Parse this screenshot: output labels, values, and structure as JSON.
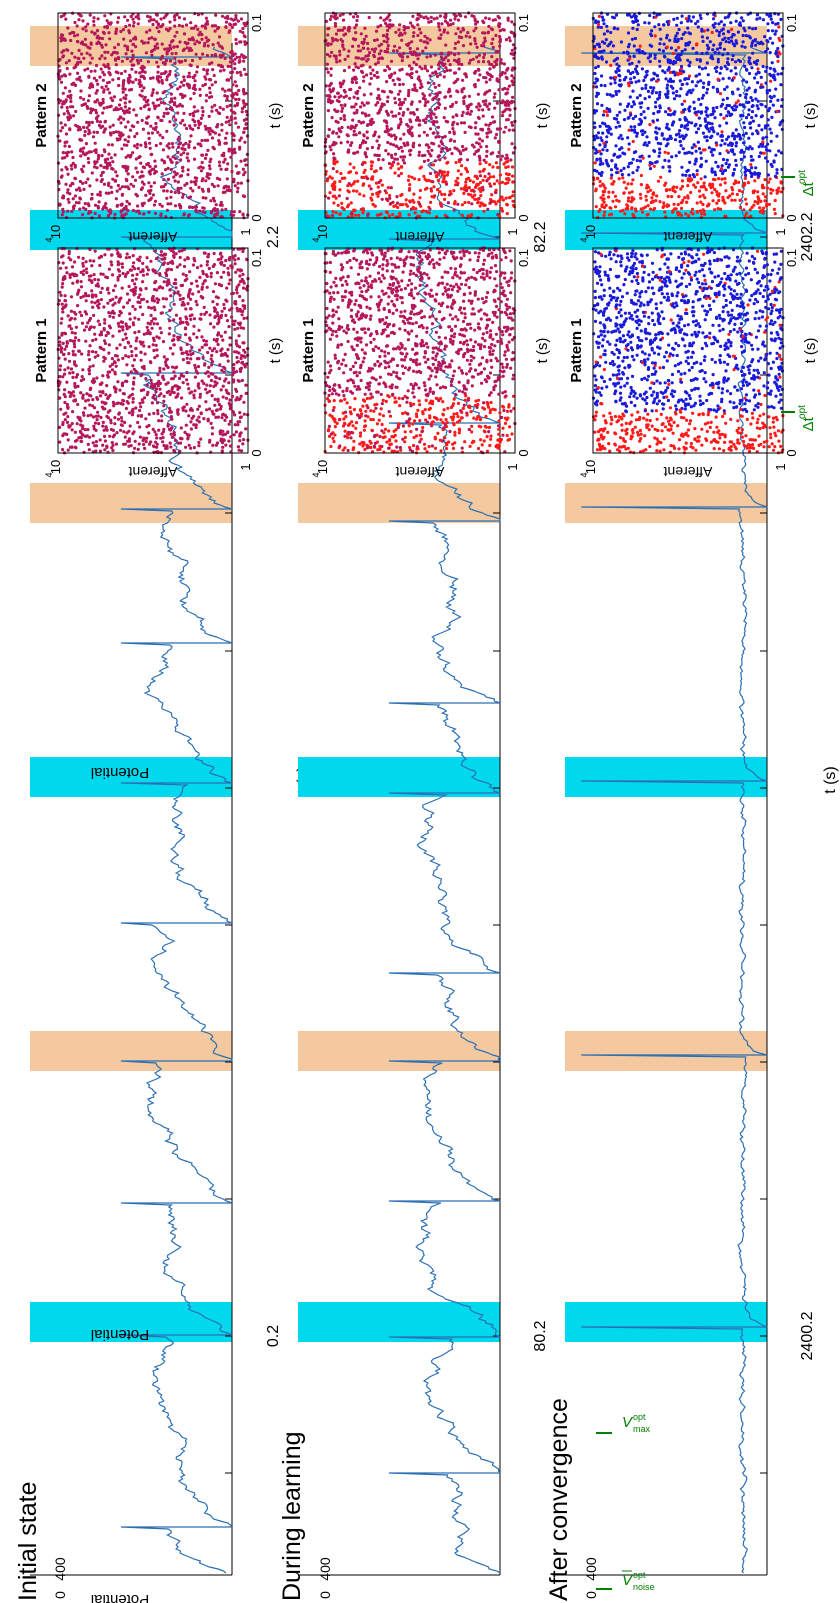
{
  "figure": {
    "colors": {
      "trace": "#2a6fb5",
      "pattern1_band": "#00d8ee",
      "pattern2_band": "#f5c99f",
      "dot_mixed": "#b5175b",
      "dot_pattern": "#ff1a1a",
      "dot_noise": "#1a1adb",
      "marker_green": "#008000"
    }
  },
  "chart_data": [
    {
      "type": "line",
      "title": "Initial state",
      "xlabel": "t (s)",
      "ylabel": "Potential",
      "xtick_labels": [
        "0.2",
        "2.2"
      ],
      "ytick_labels": [
        "0",
        "400"
      ],
      "ylim": [
        0,
        400
      ],
      "description_of_bands": [
        "pattern1",
        "pattern2",
        "pattern2",
        "pattern1",
        "pattern1",
        "pattern2"
      ]
    },
    {
      "type": "line",
      "title": "During learning",
      "xlabel": "",
      "ylabel": "Potential",
      "xtick_labels": [
        "80.2",
        "82.2"
      ],
      "ytick_labels": [
        "0",
        "400"
      ],
      "ylim": [
        0,
        400
      ]
    },
    {
      "type": "line",
      "title": "After convergence",
      "xlabel": "t (s)",
      "ylabel": "Potential",
      "xtick_labels": [
        "2400.2",
        "2402.2"
      ],
      "ytick_labels": [
        "0",
        "400"
      ],
      "ylim": [
        0,
        400
      ],
      "markers": [
        "V_max^opt",
        "V_noise^opt"
      ]
    },
    {
      "type": "scatter",
      "raster_grid": {
        "row_titles": [
          "Initial state",
          "During learning",
          "After convergence"
        ],
        "col_titles": [
          "Pattern 1",
          "Pattern 2"
        ],
        "xlabel": "t (s)",
        "ylabel": "Afferent",
        "xtick_labels": [
          "0",
          "0.1"
        ],
        "ytick_bottom": "1",
        "ytick_top_base": "10",
        "ytick_top_exp": "4",
        "delta_label": "Δt",
        "delta_sup": "opt"
      }
    }
  ],
  "labels": {
    "p1": "Pattern 1",
    "p2": "Pattern 2",
    "afferent": "Afferent",
    "ts": "t (s)",
    "x0": "0",
    "x01": "0.1",
    "y1": "1",
    "y10": "10",
    "y4": "4",
    "vmax_v": "V",
    "vmax_sub": "max",
    "vmax_sup": "opt",
    "vnoise_v": "V",
    "vnoise_sub": "noise",
    "vnoise_sup": "opt",
    "delta": "Δt",
    "delta_sup": "opt"
  }
}
